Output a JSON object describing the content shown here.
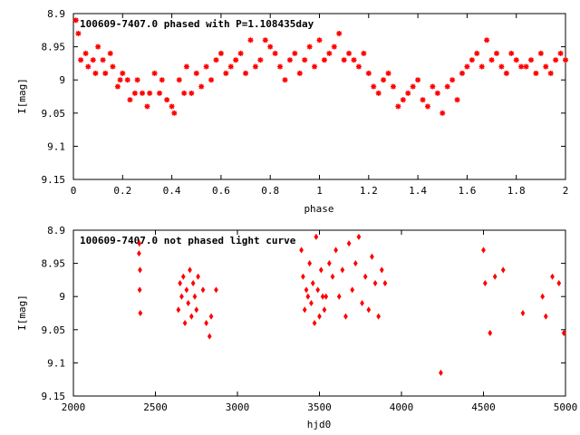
{
  "colors": {
    "points": "#ff0000",
    "axes": "#000000",
    "background": "#ffffff"
  },
  "chart_data": [
    {
      "type": "scatter",
      "title": "100609-7407.0 phased with P=1.108435day",
      "xlabel": "phase",
      "ylabel": "I[mag]",
      "xlim": [
        0,
        2
      ],
      "ylim": [
        8.9,
        9.15
      ],
      "y_inverted": true,
      "xticks": [
        "0",
        "0.2",
        "0.4",
        "0.6",
        "0.8",
        "1",
        "1.2",
        "1.4",
        "1.6",
        "1.8",
        "2"
      ],
      "yticks": [
        "8.9",
        "8.95",
        "9",
        "9.05",
        "9.1",
        "9.15"
      ],
      "marker": "star",
      "grid": false,
      "series": [
        {
          "x": [
            0.01,
            0.02,
            0.03,
            0.05,
            0.06,
            0.08,
            0.09,
            0.1,
            0.12,
            0.13,
            0.15,
            0.16,
            0.18,
            0.19,
            0.2,
            0.22,
            0.23,
            0.25,
            0.26,
            0.28,
            0.3,
            0.31,
            0.33,
            0.35,
            0.36,
            0.38,
            0.4,
            0.41,
            0.43,
            0.45,
            0.46,
            0.48,
            0.5,
            0.52,
            0.54,
            0.56,
            0.58,
            0.6,
            0.62,
            0.64,
            0.66,
            0.68,
            0.7,
            0.72,
            0.74,
            0.76,
            0.78,
            0.8,
            0.82,
            0.84,
            0.86,
            0.88,
            0.9,
            0.92,
            0.94,
            0.96,
            0.98,
            1.0,
            1.02,
            1.04,
            1.06,
            1.08,
            1.1,
            1.12,
            1.14,
            1.16,
            1.18,
            1.2,
            1.22,
            1.24,
            1.26,
            1.28,
            1.3,
            1.32,
            1.34,
            1.36,
            1.38,
            1.4,
            1.42,
            1.44,
            1.46,
            1.48,
            1.5,
            1.52,
            1.54,
            1.56,
            1.58,
            1.6,
            1.62,
            1.64,
            1.66,
            1.68,
            1.7,
            1.72,
            1.74,
            1.76,
            1.78,
            1.8,
            1.82,
            1.84,
            1.86,
            1.88,
            1.9,
            1.92,
            1.94,
            1.96,
            1.98,
            2.0
          ],
          "y": [
            8.91,
            8.93,
            8.97,
            8.96,
            8.98,
            8.97,
            8.99,
            8.95,
            8.97,
            8.99,
            8.96,
            8.98,
            9.01,
            9.0,
            8.99,
            9.0,
            9.03,
            9.02,
            9.0,
            9.02,
            9.04,
            9.02,
            8.99,
            9.02,
            9.0,
            9.03,
            9.04,
            9.05,
            9.0,
            9.02,
            8.98,
            9.02,
            8.99,
            9.01,
            8.98,
            9.0,
            8.97,
            8.96,
            8.99,
            8.98,
            8.97,
            8.96,
            8.99,
            8.94,
            8.98,
            8.97,
            8.94,
            8.95,
            8.96,
            8.98,
            9.0,
            8.97,
            8.96,
            8.99,
            8.97,
            8.95,
            8.98,
            8.94,
            8.97,
            8.96,
            8.95,
            8.93,
            8.97,
            8.96,
            8.97,
            8.98,
            8.96,
            8.99,
            9.01,
            9.02,
            9.0,
            8.99,
            9.01,
            9.04,
            9.03,
            9.02,
            9.01,
            9.0,
            9.03,
            9.04,
            9.01,
            9.02,
            9.05,
            9.01,
            9.0,
            9.03,
            8.99,
            8.98,
            8.97,
            8.96,
            8.98,
            8.94,
            8.97,
            8.96,
            8.98,
            8.99,
            8.96,
            8.97,
            8.98,
            8.98,
            8.97,
            8.99,
            8.96,
            8.98,
            8.99,
            8.97,
            8.96,
            8.97
          ]
        }
      ]
    },
    {
      "type": "scatter",
      "title": "100609-7407.0 not phased light curve",
      "xlabel": "hjd0",
      "ylabel": "I[mag]",
      "xlim": [
        2000,
        5000
      ],
      "ylim": [
        8.9,
        9.15
      ],
      "y_inverted": true,
      "xticks": [
        "2000",
        "2500",
        "3000",
        "3500",
        "4000",
        "4500",
        "5000"
      ],
      "yticks": [
        "8.9",
        "8.95",
        "9",
        "9.05",
        "9.1",
        "9.15"
      ],
      "marker": "diamond",
      "grid": false,
      "series": [
        {
          "x": [
            2400,
            2402,
            2404,
            2406,
            2408,
            2640,
            2650,
            2660,
            2670,
            2680,
            2690,
            2700,
            2710,
            2720,
            2730,
            2740,
            2750,
            2760,
            2790,
            2810,
            2830,
            2840,
            2870,
            3390,
            3400,
            3410,
            3420,
            3430,
            3440,
            3450,
            3460,
            3470,
            3480,
            3490,
            3500,
            3510,
            3520,
            3530,
            3540,
            3560,
            3580,
            3600,
            3620,
            3640,
            3660,
            3680,
            3700,
            3720,
            3740,
            3760,
            3780,
            3800,
            3820,
            3840,
            3860,
            3880,
            3900,
            4240,
            4500,
            4510,
            4540,
            4570,
            4620,
            4740,
            4860,
            4880,
            4920,
            4960,
            4990
          ],
          "y": [
            8.935,
            8.92,
            8.99,
            8.96,
            9.025,
            9.02,
            8.98,
            9.0,
            8.97,
            9.04,
            8.99,
            9.01,
            8.96,
            9.03,
            8.98,
            9.0,
            9.02,
            8.97,
            8.99,
            9.04,
            9.06,
            9.03,
            8.99,
            8.93,
            8.97,
            9.02,
            8.99,
            9.0,
            8.95,
            9.01,
            8.98,
            9.04,
            8.91,
            8.99,
            9.03,
            8.96,
            9.0,
            9.02,
            9.0,
            8.95,
            8.97,
            8.93,
            9.0,
            8.96,
            9.03,
            8.92,
            8.99,
            8.95,
            8.91,
            9.01,
            8.97,
            9.02,
            8.94,
            8.98,
            9.03,
            8.96,
            8.98,
            9.115,
            8.93,
            8.98,
            9.055,
            8.97,
            8.96,
            9.025,
            9.0,
            9.03,
            8.97,
            8.98,
            9.055
          ]
        }
      ]
    }
  ]
}
